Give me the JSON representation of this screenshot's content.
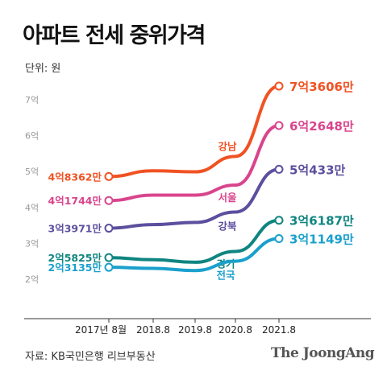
{
  "header": {
    "title": "아파트 전세 중위가격",
    "unit": "단위: 원"
  },
  "footer": {
    "source": "자료: KB국민은행 리브부동산",
    "brand": "The JoongAng"
  },
  "chart_data": {
    "type": "line",
    "title": "아파트 전세 중위가격",
    "unit": "단위: 원",
    "categories": [
      "2017년 8월",
      "2018.8",
      "2019.8",
      "2020.8",
      "2021.8"
    ],
    "y_ticks": [
      "2억",
      "3억",
      "4억",
      "5억",
      "6억",
      "7억"
    ],
    "ylim": [
      2,
      7
    ],
    "grid": false,
    "series": [
      {
        "name": "강남",
        "color": "#f05223",
        "values": [
          4.84,
          5.0,
          4.97,
          5.4,
          7.36
        ],
        "start_label": "4억8362만",
        "end_label": "7억3606만"
      },
      {
        "name": "서울",
        "color": "#d9458d",
        "values": [
          4.17,
          4.32,
          4.32,
          4.6,
          6.26
        ],
        "start_label": "4억1744만",
        "end_label": "6억2648만"
      },
      {
        "name": "강북",
        "color": "#5b4f9e",
        "values": [
          3.4,
          3.5,
          3.56,
          3.85,
          5.04
        ],
        "start_label": "3억3971만",
        "end_label": "5억433만"
      },
      {
        "name": "경기",
        "color": "#0f8580",
        "values": [
          2.58,
          2.52,
          2.45,
          2.75,
          3.62
        ],
        "start_label": "2억5825만",
        "end_label": "3억6187만"
      },
      {
        "name": "전국",
        "color": "#1aa0cc",
        "values": [
          2.31,
          2.28,
          2.22,
          2.48,
          3.11
        ],
        "start_label": "2억3135만",
        "end_label": "3억1149만"
      }
    ]
  }
}
